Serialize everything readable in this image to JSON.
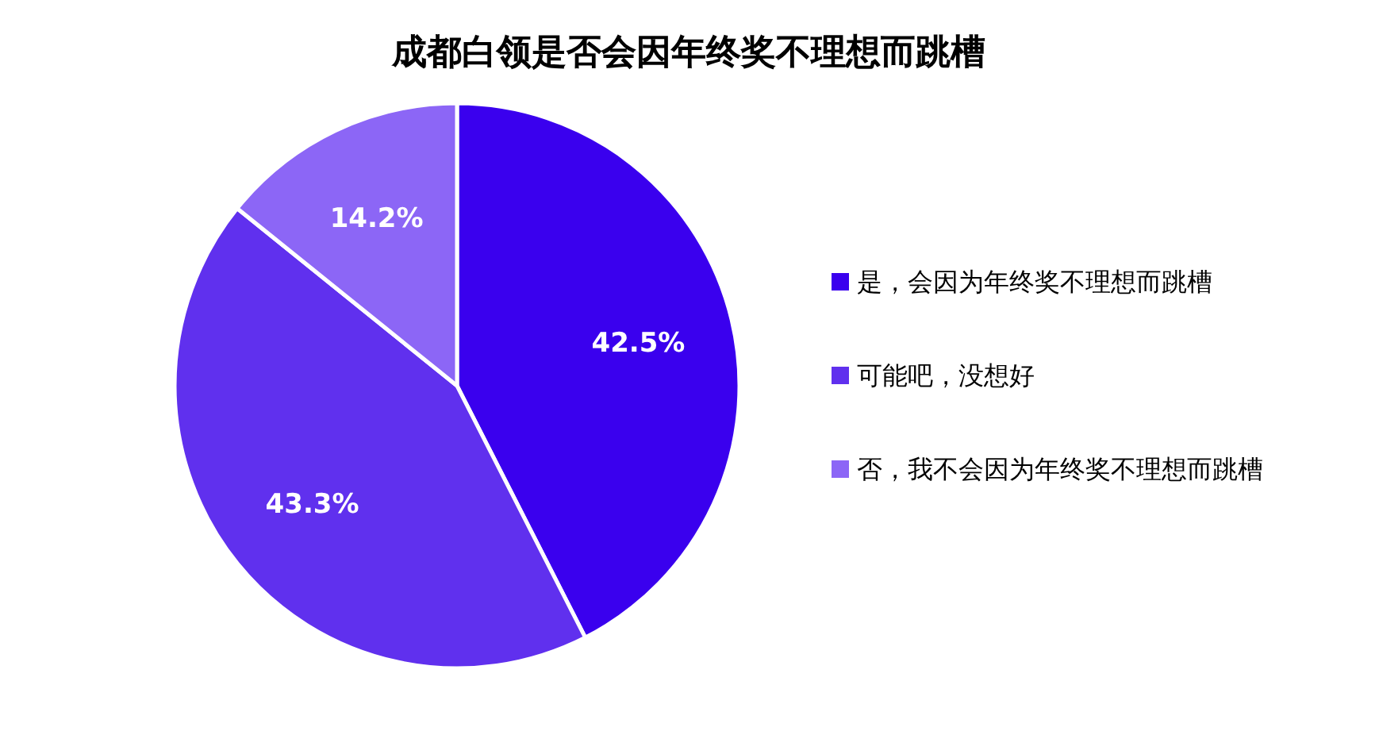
{
  "chart_data": {
    "type": "pie",
    "title": "成都白领是否会因年终奖不理想而跳槽",
    "categories": [
      "是，会因为年终奖不理想而跳槽",
      "可能吧，没想好",
      "否，我不会因为年终奖不理想而跳槽"
    ],
    "values": [
      42.5,
      43.3,
      14.2
    ],
    "colors": [
      "#3a00ee",
      "#6030ee",
      "#8c66f6"
    ],
    "value_labels": [
      "42.5%",
      "43.3%",
      "14.2%"
    ],
    "legend": "right"
  }
}
